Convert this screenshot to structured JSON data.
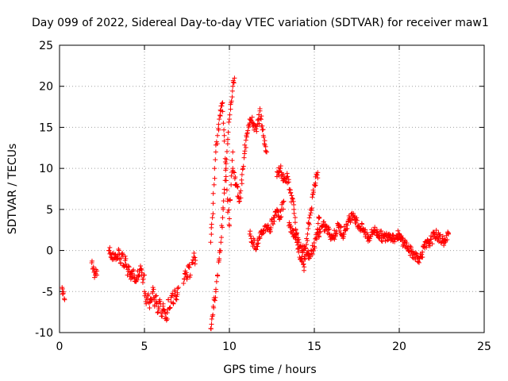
{
  "chart_data": {
    "type": "scatter",
    "title": "Day 099 of 2022, Sidereal Day-to-day VTEC variation (SDTVAR) for receiver maw1",
    "xlabel": "GPS time / hours",
    "ylabel": "SDTVAR / TECUs",
    "xlim": [
      0,
      25
    ],
    "ylim": [
      -10,
      25
    ],
    "xticks": [
      "0",
      "5",
      "10",
      "15",
      "20",
      "25"
    ],
    "yticks": [
      "-10",
      "-5",
      "0",
      "5",
      "10",
      "15",
      "20",
      "25"
    ],
    "grid": true,
    "marker": "+",
    "color": "#ff0000",
    "series": [
      {
        "name": "SDTVAR",
        "segments": [
          {
            "x": [
              0.15,
              0.3
            ],
            "y": [
              -4.5,
              -6
            ]
          },
          {
            "x": [
              1.9,
              2.0,
              2.1,
              2.2
            ],
            "y": [
              -1.5,
              -2,
              -3,
              -2.5
            ]
          },
          {
            "x": [
              2.9,
              3.0,
              3.1,
              3.3,
              3.4,
              3.5,
              3.6,
              3.7,
              3.8,
              3.9,
              4.0,
              4.1,
              4.2,
              4.3,
              4.4,
              4.5,
              4.6,
              4.7,
              4.8,
              4.9,
              5.0
            ],
            "y": [
              0,
              -0.3,
              -1,
              -0.5,
              -1,
              0,
              -1.5,
              -0.5,
              -2,
              -1,
              -3,
              -2,
              -3.5,
              -2.5,
              -3,
              -3.8,
              -2.5,
              -3,
              -2.2,
              -3.5,
              -3
            ]
          },
          {
            "x": [
              5.0,
              5.1,
              5.2,
              5.3,
              5.4,
              5.5,
              5.6,
              5.7,
              5.8,
              5.9,
              6.0,
              6.1,
              6.2,
              6.3,
              6.4,
              6.5,
              6.6,
              6.7,
              6.8,
              6.9,
              7.0
            ],
            "y": [
              -5,
              -6.5,
              -5.5,
              -7,
              -6,
              -4.5,
              -6.8,
              -5.5,
              -7.5,
              -6,
              -8,
              -6.5,
              -7.5,
              -8.5,
              -6,
              -7,
              -5.5,
              -6.5,
              -5,
              -6,
              -4.5
            ]
          },
          {
            "x": [
              7.3,
              7.4,
              7.5,
              7.6,
              7.7
            ],
            "y": [
              -4,
              -2.5,
              -3.5,
              -2,
              -3
            ]
          },
          {
            "x": [
              7.8,
              7.9,
              8.0
            ],
            "y": [
              -1.5,
              -0.8,
              -1.2
            ]
          },
          {
            "x": [
              8.9,
              9.0,
              9.1,
              9.2,
              9.3,
              9.4,
              9.5,
              9.6,
              9.7,
              9.8,
              9.9,
              10.0,
              10.1,
              10.2,
              10.3
            ],
            "y": [
              -9.5,
              -8,
              -6,
              -5,
              -3,
              -1,
              1,
              4,
              7,
              10,
              13,
              16,
              18,
              20,
              21
            ]
          },
          {
            "x": [
              8.9,
              9.0,
              9.1,
              9.2,
              9.3,
              9.4,
              9.5,
              9.6,
              9.7,
              9.8,
              9.9,
              10.0,
              10.1,
              10.2
            ],
            "y": [
              1,
              4,
              8,
              12,
              14,
              16,
              17,
              18,
              14,
              9,
              6,
              3,
              8,
              12
            ]
          },
          {
            "x": [
              10.2,
              10.4,
              10.6,
              10.8,
              11.0,
              11.2,
              11.4,
              11.6,
              11.8,
              12.0,
              12.2
            ],
            "y": [
              10,
              8,
              6,
              10,
              14,
              16,
              15.5,
              14.5,
              17,
              14,
              12
            ]
          },
          {
            "x": [
              11.2,
              11.4,
              11.6,
              11.8,
              12.0,
              12.2,
              12.4,
              12.6,
              12.8,
              13.0,
              13.2
            ],
            "y": [
              2,
              1,
              0.5,
              1.5,
              2.5,
              3,
              2.5,
              4,
              5,
              4,
              6
            ]
          },
          {
            "x": [
              12.8,
              13.0,
              13.2,
              13.4,
              13.6,
              13.8,
              14.0,
              14.2,
              14.4,
              14.6,
              14.8,
              15.0,
              15.2
            ],
            "y": [
              9,
              10,
              8.5,
              9,
              7,
              5,
              1,
              -1,
              -2,
              2,
              5,
              8,
              9.5
            ]
          },
          {
            "x": [
              13.5,
              13.8,
              14.1,
              14.4,
              14.7,
              15.0,
              15.3
            ],
            "y": [
              3,
              2,
              1,
              0,
              -0.5,
              0.5,
              4
            ]
          },
          {
            "x": [
              15.2,
              15.5,
              15.8,
              16.1,
              16.4,
              16.7,
              17.0,
              17.3,
              17.6,
              17.9,
              18.2,
              18.5,
              18.8,
              19.1,
              19.4,
              19.7,
              20.0
            ],
            "y": [
              2,
              3,
              2.5,
              1.5,
              3,
              2,
              3.5,
              4.5,
              3,
              2.5,
              1.5,
              2.5,
              2,
              1.5,
              2,
              1.5,
              2
            ]
          },
          {
            "x": [
              20.0,
              20.3,
              20.6,
              20.9,
              21.2,
              21.5,
              21.8,
              22.1,
              22.4,
              22.7,
              22.9
            ],
            "y": [
              1.5,
              1,
              0,
              -0.5,
              -1,
              0.5,
              1,
              2,
              1.5,
              1,
              2
            ]
          }
        ]
      }
    ]
  }
}
